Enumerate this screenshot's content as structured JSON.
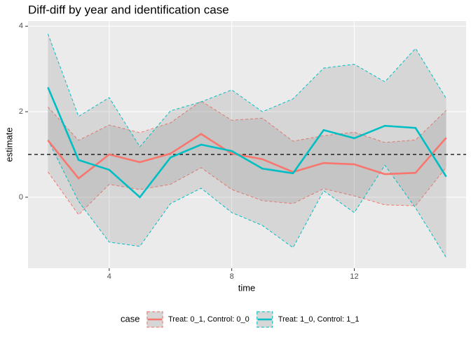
{
  "chart_data": {
    "type": "line",
    "title": "Diff-diff by year and identification case",
    "x_label": "time",
    "y_label": "estimate",
    "legend_title": "case",
    "x": [
      2,
      3,
      4,
      5,
      6,
      7,
      8,
      9,
      10,
      11,
      12,
      13,
      14,
      15
    ],
    "series": [
      {
        "name": "Treat: 0_1, Control: 0_0",
        "color": "#F8766D",
        "values": [
          1.33,
          0.44,
          1.0,
          0.82,
          1.02,
          1.48,
          1.02,
          0.89,
          0.59,
          0.8,
          0.77,
          0.54,
          0.57,
          1.39
        ],
        "upper": [
          2.11,
          1.33,
          1.69,
          1.51,
          1.74,
          2.25,
          1.8,
          1.85,
          1.31,
          1.44,
          1.52,
          1.28,
          1.34,
          2.03
        ],
        "lower": [
          0.59,
          -0.41,
          0.3,
          0.18,
          0.3,
          0.69,
          0.18,
          -0.08,
          -0.15,
          0.2,
          0.03,
          -0.18,
          -0.2,
          0.7
        ]
      },
      {
        "name": "Treat: 1_0, Control: 1_1",
        "color": "#00BFC4",
        "values": [
          2.57,
          0.87,
          0.64,
          0.0,
          0.93,
          1.23,
          1.08,
          0.67,
          0.56,
          1.57,
          1.38,
          1.67,
          1.62,
          0.48
        ],
        "upper": [
          3.82,
          1.89,
          2.33,
          1.18,
          2.02,
          2.23,
          2.51,
          2.0,
          2.3,
          3.02,
          3.11,
          2.7,
          3.48,
          2.31
        ],
        "lower": [
          1.34,
          -0.1,
          -1.05,
          -1.15,
          -0.15,
          0.21,
          -0.36,
          -0.66,
          -1.18,
          0.15,
          -0.36,
          0.75,
          -0.25,
          -1.41
        ]
      }
    ],
    "hline": 1,
    "xlim": [
      1.35,
      15.65
    ],
    "ylim": [
      -1.66,
      4.12
    ],
    "xticks": [
      4,
      8,
      12
    ],
    "yticks": [
      0,
      2,
      4
    ],
    "grid": true,
    "legend_position": "bottom"
  }
}
